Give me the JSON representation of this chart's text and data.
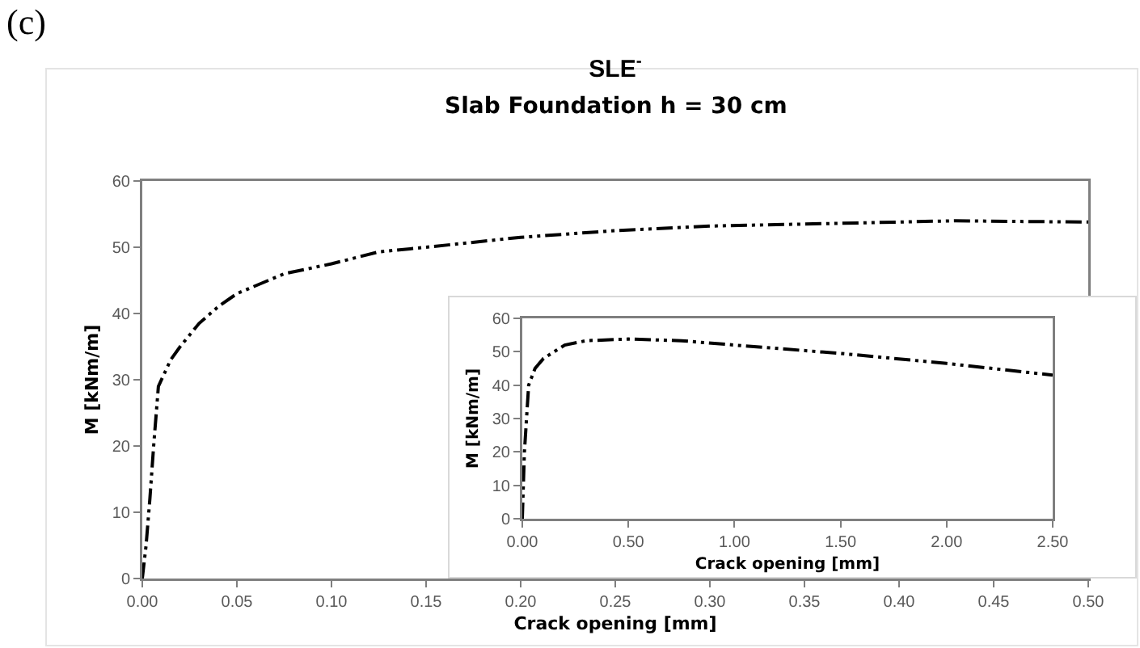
{
  "chart_data": [
    {
      "type": "line",
      "title": "SLE$^{-}$",
      "subtitle": "Slab Foundation h = 30 cm",
      "xlabel": "Crack opening [mm]",
      "ylabel": "M [kNm/m]",
      "annotations": [
        "(c)"
      ],
      "x": [
        0,
        0.002,
        0.004,
        0.006,
        0.0085,
        0.015,
        0.02,
        0.03,
        0.04,
        0.05,
        0.075,
        0.1,
        0.125,
        0.15,
        0.2,
        0.25,
        0.3,
        0.35,
        0.4,
        0.43,
        0.46,
        0.5
      ],
      "series": [
        {
          "color": "#000000",
          "values": [
            0,
            5,
            12,
            20,
            29,
            33,
            35,
            38.5,
            41,
            43,
            46,
            47.5,
            49.3,
            50,
            51.5,
            52.5,
            53.2,
            53.5,
            53.8,
            54,
            53.9,
            53.8
          ]
        }
      ],
      "xlim": [
        0,
        0.5
      ],
      "xticks": [
        {
          "value": 0,
          "label": "0.00"
        },
        {
          "value": 0.05,
          "label": "0.05"
        },
        {
          "value": 0.1,
          "label": "0.10"
        },
        {
          "value": 0.15,
          "label": "0.15"
        },
        {
          "value": 0.2,
          "label": "0.20"
        },
        {
          "value": 0.25,
          "label": "0.25"
        },
        {
          "value": 0.3,
          "label": "0.30"
        },
        {
          "value": 0.35,
          "label": "0.35"
        },
        {
          "value": 0.4,
          "label": "0.40"
        },
        {
          "value": 0.45,
          "label": "0.45"
        },
        {
          "value": 0.5,
          "label": "0.50"
        }
      ],
      "ylim": [
        0,
        60
      ],
      "yticks": [
        0,
        10,
        20,
        30,
        40,
        50,
        60
      ],
      "grid": false,
      "marker": "none",
      "line_style": "dashed"
    },
    {
      "type": "line",
      "xlabel": "Crack opening [mm]",
      "ylabel": "M [kNm/m]",
      "x": [
        0,
        0.01,
        0.02,
        0.03,
        0.06,
        0.1,
        0.2,
        0.3,
        0.5,
        0.75,
        1,
        1.5,
        2,
        2.5
      ],
      "series": [
        {
          "color": "#000000",
          "values": [
            0,
            20,
            30,
            40,
            45,
            48,
            52,
            53.3,
            53.8,
            53.3,
            52,
            49.5,
            46.5,
            43
          ]
        }
      ],
      "xlim": [
        0,
        2.5
      ],
      "xticks": [
        {
          "value": 0,
          "label": "0.00"
        },
        {
          "value": 0.5,
          "label": "0.50"
        },
        {
          "value": 1,
          "label": "1.00"
        },
        {
          "value": 1.5,
          "label": "1.50"
        },
        {
          "value": 2,
          "label": "2.00"
        },
        {
          "value": 2.5,
          "label": "2.50"
        }
      ],
      "ylim": [
        0,
        60
      ],
      "yticks": [
        0,
        10,
        20,
        30,
        40,
        50,
        60
      ],
      "grid": false,
      "marker": "none",
      "line_style": "dashed"
    }
  ]
}
